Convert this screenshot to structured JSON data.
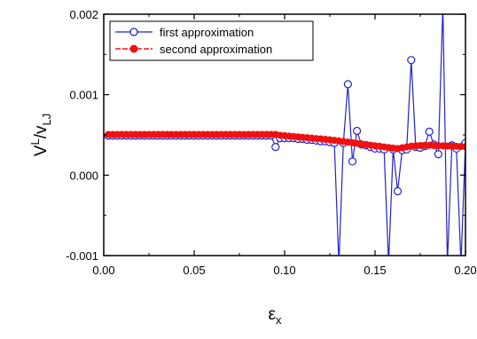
{
  "chart_data": {
    "type": "line",
    "xlabel": {
      "base": "ε",
      "sub": "x"
    },
    "ylabel": {
      "base": "V",
      "sup": "L",
      "mid": "/v",
      "sub": "LJ"
    },
    "xlim": [
      0.0,
      0.2
    ],
    "ylim": [
      -0.001,
      0.002
    ],
    "xticks": [
      0.0,
      0.05,
      0.1,
      0.15,
      0.2
    ],
    "xtick_labels": [
      "0.00",
      "0.05",
      "0.10",
      "0.15",
      "0.20"
    ],
    "yticks": [
      -0.001,
      0.0,
      0.001,
      0.002
    ],
    "ytick_labels": [
      "-0.001",
      "0.000",
      "0.001",
      "0.002"
    ],
    "grid": false,
    "legend_position": "top-left",
    "colors": {
      "first": "#2222cc",
      "second": "#ee1111",
      "second_line": "#ff3333"
    },
    "series": [
      {
        "name": "first approximation",
        "marker": "open-circle",
        "x": [
          0.0025,
          0.005,
          0.0075,
          0.01,
          0.0125,
          0.015,
          0.0175,
          0.02,
          0.0225,
          0.025,
          0.0275,
          0.03,
          0.0325,
          0.035,
          0.0375,
          0.04,
          0.0425,
          0.045,
          0.0475,
          0.05,
          0.0525,
          0.055,
          0.0575,
          0.06,
          0.0625,
          0.065,
          0.0675,
          0.07,
          0.0725,
          0.075,
          0.0775,
          0.08,
          0.0825,
          0.085,
          0.0875,
          0.09,
          0.0925,
          0.095,
          0.0975,
          0.1,
          0.1025,
          0.105,
          0.1075,
          0.11,
          0.1125,
          0.115,
          0.1175,
          0.12,
          0.1225,
          0.125,
          0.1275,
          0.13,
          0.1325,
          0.135,
          0.1375,
          0.14,
          0.1425,
          0.145,
          0.1475,
          0.15,
          0.1525,
          0.155,
          0.1575,
          0.16,
          0.1625,
          0.165,
          0.1675,
          0.17,
          0.1725,
          0.175,
          0.1775,
          0.18,
          0.1825,
          0.185,
          0.1875,
          0.19,
          0.1925,
          0.195,
          0.1975,
          0.2
        ],
        "y": [
          0.00049,
          0.00049,
          0.00049,
          0.00049,
          0.00049,
          0.00049,
          0.00049,
          0.00049,
          0.00049,
          0.00049,
          0.00049,
          0.00049,
          0.00049,
          0.00049,
          0.00049,
          0.00049,
          0.00049,
          0.00049,
          0.00049,
          0.00049,
          0.00049,
          0.00049,
          0.00049,
          0.00049,
          0.00049,
          0.00049,
          0.00049,
          0.00049,
          0.00049,
          0.00049,
          0.00049,
          0.00049,
          0.00049,
          0.00049,
          0.00049,
          0.00049,
          0.00049,
          0.00035,
          0.00046,
          0.00046,
          0.00046,
          0.00046,
          0.00045,
          0.00045,
          0.00044,
          0.00044,
          0.00043,
          0.00042,
          0.00042,
          0.00041,
          0.0004,
          -0.0011,
          0.0004,
          0.00113,
          0.00017,
          0.00055,
          0.00038,
          0.00037,
          0.00035,
          0.00033,
          0.00033,
          0.00032,
          -0.0011,
          0.00032,
          -0.0002,
          0.00031,
          0.00032,
          0.00143,
          0.00035,
          0.00034,
          0.00036,
          0.00054,
          0.00038,
          0.00026,
          0.0021,
          -0.0011,
          0.00037,
          0.00033,
          -0.0011,
          0.0004
        ]
      },
      {
        "name": "second approximation",
        "marker": "filled-circle",
        "x": [
          0.0025,
          0.005,
          0.0075,
          0.01,
          0.0125,
          0.015,
          0.0175,
          0.02,
          0.0225,
          0.025,
          0.0275,
          0.03,
          0.0325,
          0.035,
          0.0375,
          0.04,
          0.0425,
          0.045,
          0.0475,
          0.05,
          0.0525,
          0.055,
          0.0575,
          0.06,
          0.0625,
          0.065,
          0.0675,
          0.07,
          0.0725,
          0.075,
          0.0775,
          0.08,
          0.0825,
          0.085,
          0.0875,
          0.09,
          0.0925,
          0.095,
          0.0975,
          0.1,
          0.1025,
          0.105,
          0.1075,
          0.11,
          0.1125,
          0.115,
          0.1175,
          0.12,
          0.1225,
          0.125,
          0.1275,
          0.13,
          0.1325,
          0.135,
          0.1375,
          0.14,
          0.1425,
          0.145,
          0.1475,
          0.15,
          0.1525,
          0.155,
          0.1575,
          0.16,
          0.1625,
          0.165,
          0.1675,
          0.17,
          0.1725,
          0.175,
          0.1775,
          0.18,
          0.1825,
          0.185,
          0.1875,
          0.19,
          0.1925,
          0.195,
          0.1975,
          0.2
        ],
        "y": [
          0.000505,
          0.000505,
          0.000505,
          0.000505,
          0.000505,
          0.000505,
          0.000505,
          0.000505,
          0.000505,
          0.000505,
          0.000505,
          0.000505,
          0.000505,
          0.000505,
          0.000505,
          0.000505,
          0.000505,
          0.000505,
          0.000505,
          0.000505,
          0.000505,
          0.000505,
          0.000505,
          0.000505,
          0.000505,
          0.000505,
          0.000505,
          0.000505,
          0.000505,
          0.000505,
          0.000505,
          0.000505,
          0.000505,
          0.000505,
          0.000505,
          0.000505,
          0.000505,
          0.000505,
          0.000495,
          0.00049,
          0.000485,
          0.00048,
          0.000475,
          0.00047,
          0.000465,
          0.00046,
          0.000455,
          0.00045,
          0.000445,
          0.00044,
          0.000432,
          0.000425,
          0.000418,
          0.00041,
          0.000402,
          0.000395,
          0.000388,
          0.00038,
          0.000372,
          0.000365,
          0.000358,
          0.00035,
          0.000343,
          0.000336,
          0.00033,
          0.00034,
          0.00035,
          0.00036,
          0.000365,
          0.000368,
          0.00037,
          0.00037,
          0.000368,
          0.000366,
          0.000364,
          0.000362,
          0.00036,
          0.000358,
          0.000356,
          0.000354
        ]
      }
    ]
  }
}
